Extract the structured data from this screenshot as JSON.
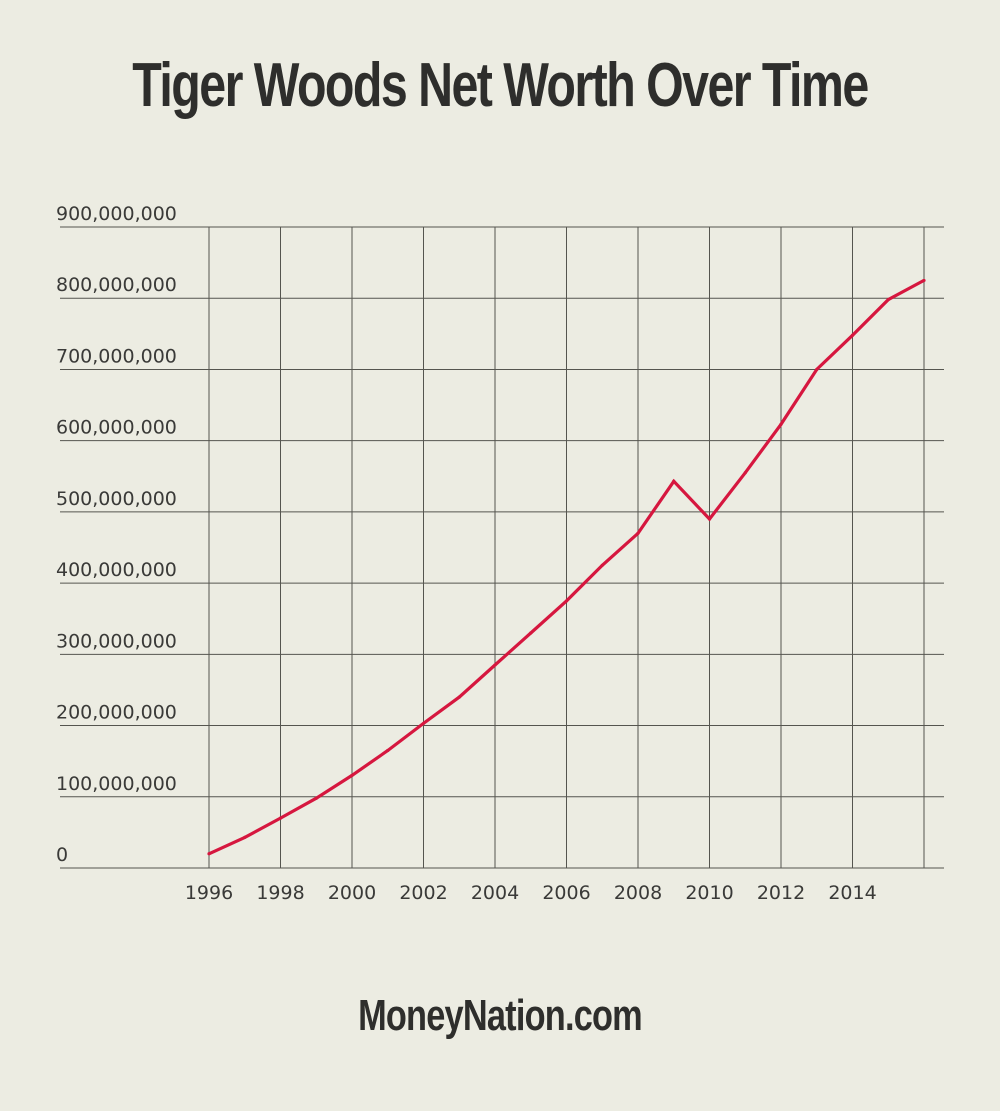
{
  "title": "Tiger Woods Net Worth Over Time",
  "footer": "MoneyNation.com",
  "colors": {
    "background": "#ecece2",
    "grid": "#55554f",
    "line": "#d6173f",
    "text": "#2e2e2c"
  },
  "chart_data": {
    "type": "line",
    "title": "Tiger Woods Net Worth Over Time",
    "xlabel": "",
    "ylabel": "",
    "xlim": [
      1994,
      2016
    ],
    "ylim": [
      0,
      900000000
    ],
    "grid": true,
    "legend": "none",
    "x_ticks": [
      "1996",
      "1998",
      "2000",
      "2002",
      "2004",
      "2006",
      "2008",
      "2010",
      "2012",
      "2014"
    ],
    "y_ticks": [
      "0",
      "100,000,000",
      "200,000,000",
      "300,000,000",
      "400,000,000",
      "500,000,000",
      "600,000,000",
      "700,000,000",
      "800,000,000",
      "900,000,000"
    ],
    "x": [
      1996,
      1997,
      1998,
      1999,
      2000,
      2001,
      2002,
      2003,
      2004,
      2005,
      2006,
      2007,
      2008,
      2009,
      2010,
      2011,
      2012,
      2013,
      2014,
      2015,
      2016
    ],
    "series": [
      {
        "values": [
          20000000,
          43000000,
          70000000,
          98000000,
          130000000,
          165000000,
          203000000,
          240000000,
          285000000,
          330000000,
          375000000,
          425000000,
          470000000,
          543000000,
          490000000,
          555000000,
          623000000,
          700000000,
          748000000,
          798000000,
          825000000
        ]
      }
    ]
  }
}
